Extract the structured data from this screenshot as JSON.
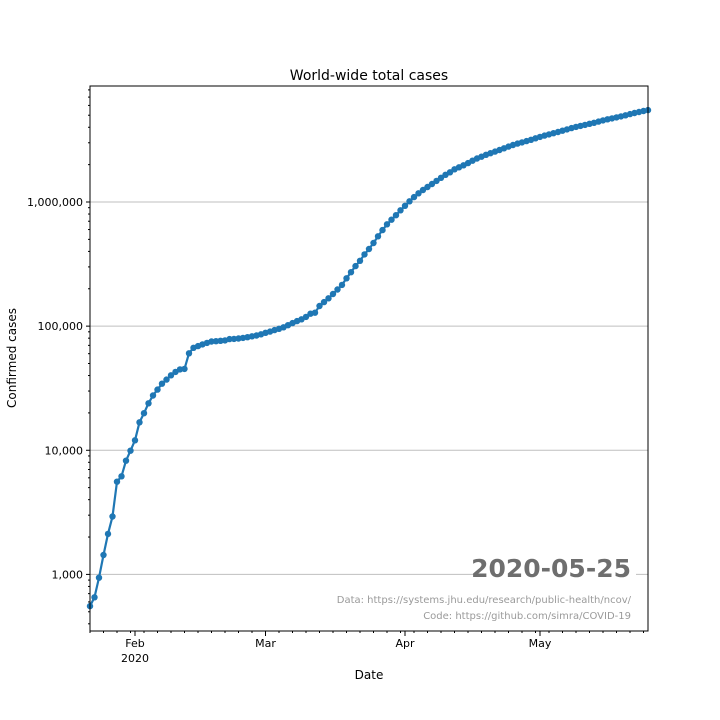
{
  "chart_data": {
    "type": "line",
    "title": "World-wide total cases",
    "xlabel": "Date",
    "ylabel": "Confirmed cases",
    "yscale": "log",
    "ylim": [
      350,
      8600000
    ],
    "xlim": [
      "2020-01-22",
      "2020-05-25"
    ],
    "grid": "horizontal",
    "series_color": "#1f77b4",
    "marker": "circle",
    "x_ticks": [
      {
        "date": "2020-02-01",
        "label": "Feb",
        "sublabel": "2020"
      },
      {
        "date": "2020-03-01",
        "label": "Mar",
        "sublabel": ""
      },
      {
        "date": "2020-04-01",
        "label": "Apr",
        "sublabel": ""
      },
      {
        "date": "2020-05-01",
        "label": "May",
        "sublabel": ""
      }
    ],
    "y_ticks": [
      {
        "value": 1000,
        "label": "1,000"
      },
      {
        "value": 10000,
        "label": "10,000"
      },
      {
        "value": 100000,
        "label": "100,000"
      },
      {
        "value": 1000000,
        "label": "1,000,000"
      }
    ],
    "series": [
      {
        "x": [
          "2020-01-22",
          "2020-01-23",
          "2020-01-24",
          "2020-01-25",
          "2020-01-26",
          "2020-01-27",
          "2020-01-28",
          "2020-01-29",
          "2020-01-30",
          "2020-01-31",
          "2020-02-01",
          "2020-02-02",
          "2020-02-03",
          "2020-02-04",
          "2020-02-05",
          "2020-02-06",
          "2020-02-07",
          "2020-02-08",
          "2020-02-09",
          "2020-02-10",
          "2020-02-11",
          "2020-02-12",
          "2020-02-13",
          "2020-02-14",
          "2020-02-15",
          "2020-02-16",
          "2020-02-17",
          "2020-02-18",
          "2020-02-19",
          "2020-02-20",
          "2020-02-21",
          "2020-02-22",
          "2020-02-23",
          "2020-02-24",
          "2020-02-25",
          "2020-02-26",
          "2020-02-27",
          "2020-02-28",
          "2020-02-29",
          "2020-03-01",
          "2020-03-02",
          "2020-03-03",
          "2020-03-04",
          "2020-03-05",
          "2020-03-06",
          "2020-03-07",
          "2020-03-08",
          "2020-03-09",
          "2020-03-10",
          "2020-03-11",
          "2020-03-12",
          "2020-03-13",
          "2020-03-14",
          "2020-03-15",
          "2020-03-16",
          "2020-03-17",
          "2020-03-18",
          "2020-03-19",
          "2020-03-20",
          "2020-03-21",
          "2020-03-22",
          "2020-03-23",
          "2020-03-24",
          "2020-03-25",
          "2020-03-26",
          "2020-03-27",
          "2020-03-28",
          "2020-03-29",
          "2020-03-30",
          "2020-03-31",
          "2020-04-01",
          "2020-04-02",
          "2020-04-03",
          "2020-04-04",
          "2020-04-05",
          "2020-04-06",
          "2020-04-07",
          "2020-04-08",
          "2020-04-09",
          "2020-04-10",
          "2020-04-11",
          "2020-04-12",
          "2020-04-13",
          "2020-04-14",
          "2020-04-15",
          "2020-04-16",
          "2020-04-17",
          "2020-04-18",
          "2020-04-19",
          "2020-04-20",
          "2020-04-21",
          "2020-04-22",
          "2020-04-23",
          "2020-04-24",
          "2020-04-25",
          "2020-04-26",
          "2020-04-27",
          "2020-04-28",
          "2020-04-29",
          "2020-04-30",
          "2020-05-01",
          "2020-05-02",
          "2020-05-03",
          "2020-05-04",
          "2020-05-05",
          "2020-05-06",
          "2020-05-07",
          "2020-05-08",
          "2020-05-09",
          "2020-05-10",
          "2020-05-11",
          "2020-05-12",
          "2020-05-13",
          "2020-05-14",
          "2020-05-15",
          "2020-05-16",
          "2020-05-17",
          "2020-05-18",
          "2020-05-19",
          "2020-05-20",
          "2020-05-21",
          "2020-05-22",
          "2020-05-23",
          "2020-05-24",
          "2020-05-25"
        ],
        "values": [
          555,
          654,
          941,
          1434,
          2118,
          2927,
          5578,
          6166,
          8234,
          9927,
          12038,
          16787,
          19881,
          23892,
          27635,
          30794,
          34391,
          37120,
          40150,
          42762,
          44802,
          45221,
          60368,
          66885,
          69030,
          71224,
          73258,
          75136,
          75639,
          76197,
          76819,
          78572,
          78958,
          79561,
          80406,
          81388,
          82746,
          84112,
          86011,
          88369,
          90306,
          92840,
          95120,
          97886,
          101800,
          105836,
          109835,
          113582,
          118582,
          125865,
          128343,
          145193,
          156097,
          167449,
          181546,
          197142,
          214910,
          242708,
          272166,
          304524,
          335955,
          378287,
          418041,
          467653,
          529591,
          593291,
          660706,
          720117,
          782365,
          857487,
          932605,
          1013466,
          1095917,
          1176060,
          1249754,
          1321481,
          1396476,
          1479804,
          1565278,
          1657526,
          1735650,
          1834721,
          1904838,
          1976191,
          2056054,
          2152437,
          2240190,
          2317758,
          2401378,
          2472259,
          2549294,
          2624142,
          2708885,
          2795729,
          2881140,
          2955033,
          3023722,
          3097229,
          3172287,
          3256846,
          3343777,
          3427343,
          3506729,
          3583055,
          3662691,
          3755341,
          3845718,
          3938064,
          4024009,
          4101699,
          4177502,
          4261747,
          4347018,
          4442163,
          4542347,
          4634068,
          4713620,
          4801943,
          4897492,
          4996472,
          5102424,
          5210817,
          5310362,
          5407613,
          5495061
        ]
      }
    ],
    "annotation": "2020-05-25",
    "source_note": "Data: https://systems.jhu.edu/research/public-health/ncov/",
    "code_note": "Code: https://github.com/simra/COVID-19"
  }
}
